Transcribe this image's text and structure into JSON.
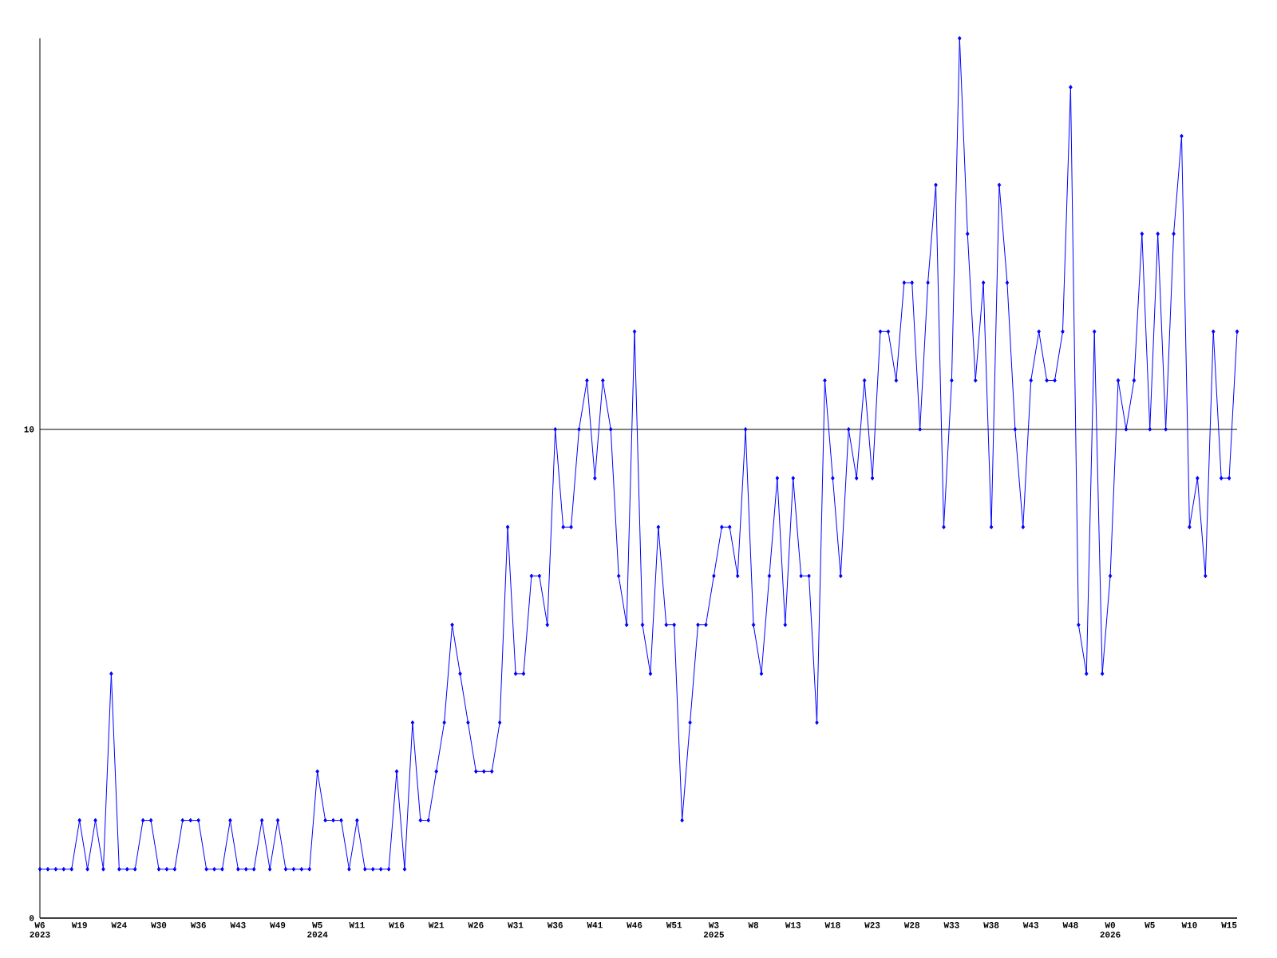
{
  "chart_data": {
    "type": "line",
    "categories": [
      "W6 2023",
      null,
      null,
      null,
      null,
      "W19",
      null,
      null,
      null,
      null,
      "W24",
      null,
      null,
      null,
      null,
      "W30",
      null,
      null,
      null,
      null,
      "W36",
      null,
      null,
      null,
      null,
      "W43",
      null,
      null,
      null,
      null,
      "W49",
      null,
      null,
      null,
      null,
      "W5 2024",
      null,
      null,
      null,
      null,
      "W11",
      null,
      null,
      null,
      null,
      "W16",
      null,
      null,
      null,
      null,
      "W21",
      null,
      null,
      null,
      null,
      "W26",
      null,
      null,
      null,
      null,
      "W31",
      null,
      null,
      null,
      null,
      "W36",
      null,
      null,
      null,
      null,
      "W41",
      null,
      null,
      null,
      null,
      "W46",
      null,
      null,
      null,
      null,
      "W51",
      null,
      null,
      null,
      null,
      "W3 2025",
      null,
      null,
      null,
      null,
      "W8",
      null,
      null,
      null,
      null,
      "W13",
      null,
      null,
      null,
      null,
      "W18",
      null,
      null,
      null,
      null,
      "W23",
      null,
      null,
      null,
      null,
      "W28",
      null,
      null,
      null,
      null,
      "W33",
      null,
      null,
      null,
      null,
      "W38",
      null,
      null,
      null,
      null,
      "W43",
      null,
      null,
      null,
      null,
      "W48",
      null,
      null,
      null,
      null,
      "W0 2026",
      null,
      null,
      null,
      null,
      "W5",
      null,
      null,
      null,
      null,
      "W10",
      null,
      null,
      null,
      null,
      "W15",
      null
    ],
    "series": [
      {
        "color": "#0000ff",
        "values": [
          1,
          1,
          1,
          1,
          1,
          2,
          1,
          2,
          1,
          5,
          1,
          1,
          1,
          2,
          2,
          1,
          1,
          1,
          2,
          2,
          2,
          1,
          1,
          1,
          2,
          1,
          1,
          1,
          2,
          1,
          2,
          1,
          1,
          1,
          1,
          3,
          2,
          2,
          2,
          1,
          2,
          1,
          1,
          1,
          1,
          3,
          1,
          4,
          2,
          2,
          3,
          4,
          6,
          5,
          4,
          3,
          3,
          3,
          4,
          8,
          5,
          5,
          7,
          7,
          6,
          10,
          8,
          8,
          10,
          11,
          9,
          11,
          10,
          7,
          6,
          12,
          6,
          5,
          8,
          6,
          6,
          2,
          4,
          6,
          6,
          7,
          8,
          8,
          7,
          10,
          6,
          5,
          7,
          9,
          6,
          9,
          7,
          7,
          4,
          11,
          9,
          7,
          10,
          9,
          11,
          9,
          12,
          12,
          11,
          13,
          13,
          10,
          13,
          15,
          8,
          11,
          18,
          14,
          11,
          13,
          8,
          15,
          13,
          10,
          8,
          11,
          12,
          11,
          11,
          12,
          17,
          6,
          5,
          12,
          5,
          7,
          11,
          10,
          11,
          14,
          10,
          14,
          10,
          14,
          16,
          8,
          9,
          7,
          12,
          9,
          9,
          12
        ]
      }
    ],
    "ylim": [
      0,
      18
    ],
    "yticks": [
      0,
      10
    ],
    "grid": "y",
    "marker": "diamond",
    "line_style": "solid"
  }
}
